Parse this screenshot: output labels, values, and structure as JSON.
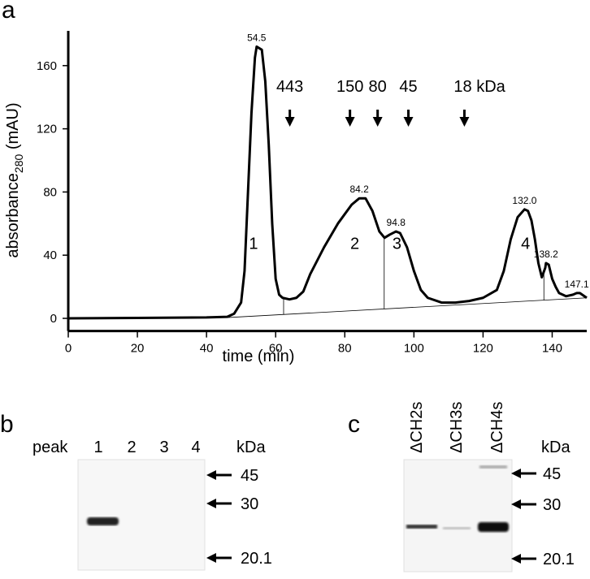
{
  "chart_data": {
    "type": "line",
    "panel_label": "a",
    "x_label": "time (min)",
    "y_label": {
      "main": "absorbance",
      "sub": "280",
      "unit": " (mAU)"
    },
    "xlim": [
      0,
      150
    ],
    "ylim": [
      -8,
      182
    ],
    "xticks": [
      0,
      20,
      40,
      60,
      80,
      100,
      120,
      140
    ],
    "yticks": [
      0,
      40,
      80,
      120,
      160
    ],
    "grid": false,
    "color": "#000000",
    "x": [
      0,
      20,
      40,
      46,
      48,
      50,
      51,
      52,
      53,
      54,
      54.5,
      56,
      57,
      58,
      59,
      60,
      61,
      62,
      64,
      66,
      68,
      70,
      74,
      78,
      82,
      84.2,
      86,
      88,
      90,
      91.5,
      93,
      94.8,
      96,
      98,
      100,
      102,
      104,
      108,
      112,
      116,
      120,
      124,
      126,
      128,
      130,
      132,
      133,
      134,
      135,
      136,
      137,
      138,
      138.2,
      139,
      140,
      141,
      142,
      144,
      146,
      147.1,
      148,
      150
    ],
    "values": [
      0,
      0.3,
      0.6,
      1,
      3,
      10,
      30,
      80,
      130,
      165,
      172,
      170,
      150,
      110,
      60,
      25,
      15,
      13,
      12,
      13,
      17,
      28,
      45,
      60,
      72,
      76,
      76,
      68,
      55,
      51,
      53,
      55,
      54,
      45,
      30,
      18,
      13,
      10,
      10,
      11,
      13,
      18,
      30,
      50,
      64,
      69,
      68,
      62,
      50,
      35,
      26,
      32,
      35,
      34,
      25,
      20,
      16,
      14,
      15,
      16,
      16,
      13
    ],
    "baseline": {
      "x": [
        46,
        150
      ],
      "y": [
        0.5,
        13
      ]
    },
    "peak_boundaries": {
      "x": [
        62.3,
        91.4,
        137.6
      ],
      "y": [
        13,
        51,
        30
      ]
    },
    "peak_times": [
      {
        "x": 54.5,
        "y": 172,
        "text": "54.5"
      },
      {
        "x": 84.2,
        "y": 76,
        "text": "84.2"
      },
      {
        "x": 94.8,
        "y": 55,
        "text": "94.8"
      },
      {
        "x": 132.0,
        "y": 69,
        "text": "132.0"
      },
      {
        "x": 138.2,
        "y": 35,
        "text": "138.2"
      },
      {
        "x": 147.1,
        "y": 16,
        "text": "147.1"
      }
    ],
    "peak_numbers": [
      {
        "x": 53.6,
        "y": 44,
        "text": "1"
      },
      {
        "x": 82.9,
        "y": 44,
        "text": "2"
      },
      {
        "x": 95.1,
        "y": 44,
        "text": "3"
      },
      {
        "x": 132.3,
        "y": 44,
        "text": "4"
      }
    ],
    "markers": [
      {
        "x": 64.1,
        "label": "443"
      },
      {
        "x": 81.5,
        "label": "150"
      },
      {
        "x": 89.5,
        "label": "80"
      },
      {
        "x": 98.4,
        "label": "45"
      },
      {
        "x": 114.6,
        "label": "18 kDa"
      }
    ]
  },
  "panel_b": {
    "label": "b",
    "row_title": "peak",
    "lanes": [
      "1",
      "2",
      "3",
      "4"
    ],
    "unit": "kDa",
    "sizes": [
      "45",
      "30",
      "20.1"
    ]
  },
  "panel_c": {
    "label": "c",
    "lanes": [
      "ΔCH2s",
      "ΔCH3s",
      "ΔCH4s"
    ],
    "unit": "kDa",
    "sizes": [
      "45",
      "30",
      "20.1"
    ]
  }
}
